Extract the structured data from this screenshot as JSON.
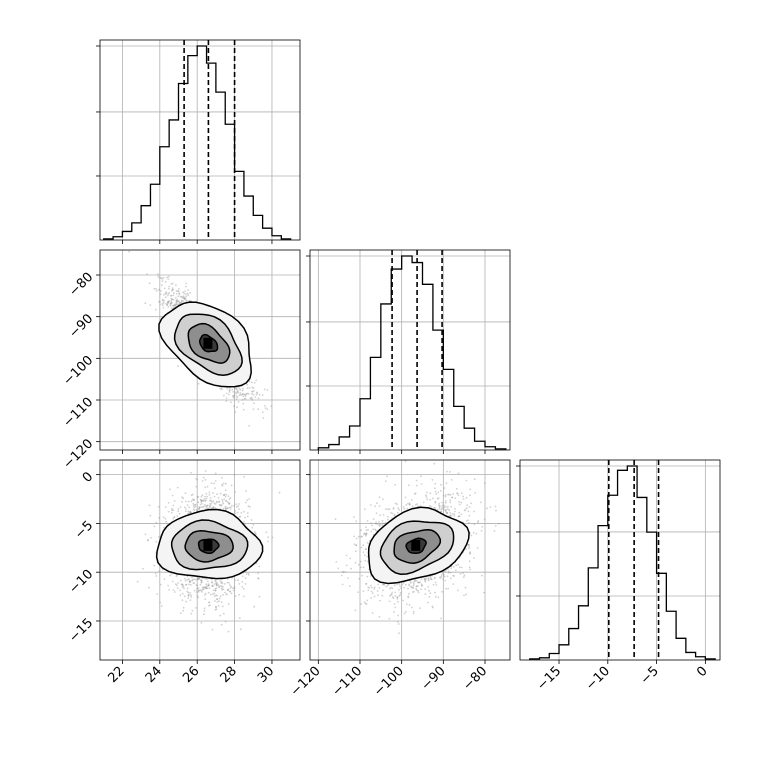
{
  "figure": {
    "bg": "#ffffff",
    "ink": "#000000",
    "grid_color": "#b0b0b0",
    "scatter_color": "#9a9a9a"
  },
  "chart_data": [
    {
      "id": "hist_p1",
      "type": "histogram",
      "xlim": [
        20.8,
        31.5
      ],
      "bins": [
        21.0,
        21.5,
        22.0,
        22.5,
        23.0,
        23.5,
        24.0,
        24.5,
        25.0,
        25.5,
        26.0,
        26.5,
        27.0,
        27.5,
        28.0,
        28.5,
        29.0,
        29.5,
        30.0,
        30.5,
        31.0
      ],
      "counts": [
        1,
        3,
        8,
        16,
        32,
        52,
        87,
        112,
        146,
        172,
        181,
        165,
        138,
        108,
        64,
        41,
        23,
        11,
        4,
        1
      ],
      "quantiles": [
        25.3,
        26.6,
        28.0
      ],
      "grid": true
    },
    {
      "id": "hist_p2",
      "type": "histogram",
      "xlim": [
        -122,
        -74
      ],
      "bins": [
        -120,
        -117.5,
        -115,
        -112.5,
        -110,
        -107.5,
        -105,
        -102.5,
        -100,
        -97.5,
        -95,
        -92.5,
        -90,
        -87.5,
        -85,
        -82.5,
        -80,
        -77.5,
        -75
      ],
      "counts": [
        2,
        5,
        12,
        22,
        47,
        85,
        134,
        166,
        178,
        172,
        152,
        110,
        74,
        40,
        20,
        8,
        3,
        1
      ],
      "quantiles": [
        -102.3,
        -96.3,
        -90.3
      ],
      "grid": true
    },
    {
      "id": "hist_p3",
      "type": "histogram",
      "xlim": [
        -19,
        1.5
      ],
      "bins": [
        -18,
        -17,
        -16,
        -15,
        -14,
        -13,
        -12,
        -11,
        -10,
        -9,
        -8,
        -7,
        -6,
        -5,
        -4,
        -3,
        -2,
        -1,
        0,
        1
      ],
      "counts": [
        1,
        2,
        6,
        14,
        29,
        50,
        85,
        124,
        152,
        175,
        179,
        150,
        118,
        80,
        45,
        20,
        7,
        3,
        1
      ],
      "quantiles": [
        -9.9,
        -7.3,
        -4.8
      ],
      "grid": true
    },
    {
      "id": "hist2d_p2_vs_p1",
      "type": "scatter",
      "x_param": "p1",
      "y_param": "p2",
      "xlim": [
        20.8,
        31.5
      ],
      "ylim": [
        -122,
        -74
      ],
      "center": [
        26.6,
        -96.5
      ],
      "correlation": -0.85,
      "grid": true
    },
    {
      "id": "hist2d_p3_vs_p1",
      "type": "scatter",
      "x_param": "p1",
      "y_param": "p3",
      "xlim": [
        20.8,
        31.5
      ],
      "ylim": [
        -19,
        1.5
      ],
      "center": [
        26.6,
        -7.3
      ],
      "correlation": 0.0,
      "grid": true
    },
    {
      "id": "hist2d_p3_vs_p2",
      "type": "scatter",
      "x_param": "p2",
      "y_param": "p3",
      "xlim": [
        -122,
        -74
      ],
      "ylim": [
        -19,
        1.5
      ],
      "center": [
        -96.5,
        -7.3
      ],
      "correlation": 0.3,
      "grid": true
    }
  ],
  "axes": {
    "p1_ticks": [
      "22",
      "24",
      "26",
      "28",
      "30"
    ],
    "p2_ticks": [
      "−120",
      "−110",
      "−100",
      "−90",
      "−80"
    ],
    "p3_ticks": [
      "−15",
      "−10",
      "−5",
      "0"
    ],
    "p2_ylabels": [
      "−80",
      "−90",
      "−100",
      "−110",
      "−120"
    ],
    "p3_ylabels": [
      "0",
      "−5",
      "−10",
      "−15"
    ]
  }
}
